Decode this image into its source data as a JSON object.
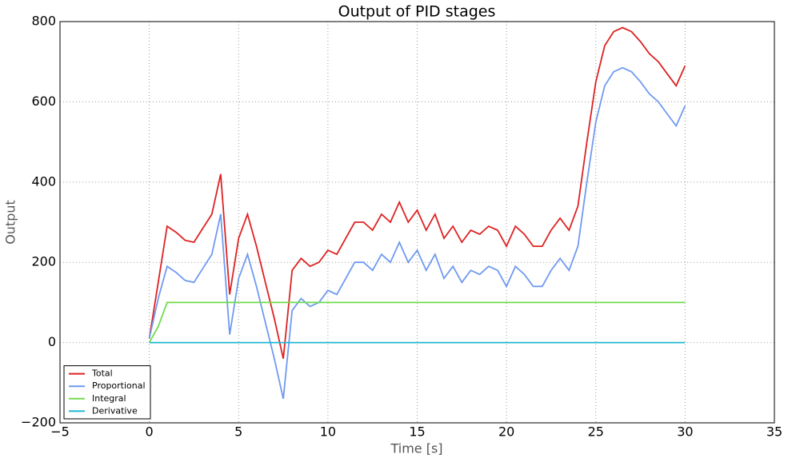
{
  "chart_data": {
    "type": "line",
    "title": "Output of PID stages",
    "xlabel": "Time [s]",
    "ylabel": "Output",
    "x": [
      0,
      0.5,
      1,
      1.5,
      2,
      2.5,
      3,
      3.5,
      4,
      4.5,
      5,
      5.5,
      6,
      6.5,
      7,
      7.5,
      8,
      8.5,
      9,
      9.5,
      10,
      10.5,
      11,
      11.5,
      12,
      12.5,
      13,
      13.5,
      14,
      14.5,
      15,
      15.5,
      16,
      16.5,
      17,
      17.5,
      18,
      18.5,
      19,
      19.5,
      20,
      20.5,
      21,
      21.5,
      22,
      22.5,
      23,
      23.5,
      24,
      24.5,
      25,
      25.5,
      26,
      26.5,
      27,
      27.5,
      28,
      28.5,
      29,
      29.5,
      30
    ],
    "series": [
      {
        "name": "Total",
        "color": "#dd2222",
        "values": [
          10,
          150,
          290,
          275,
          255,
          250,
          285,
          320,
          420,
          120,
          260,
          320,
          240,
          150,
          60,
          -40,
          180,
          210,
          190,
          200,
          230,
          220,
          260,
          300,
          300,
          280,
          320,
          300,
          350,
          300,
          330,
          280,
          320,
          260,
          290,
          250,
          280,
          270,
          290,
          280,
          240,
          290,
          270,
          240,
          240,
          280,
          310,
          280,
          340,
          500,
          650,
          740,
          775,
          785,
          775,
          750,
          720,
          700,
          670,
          640,
          690
        ]
      },
      {
        "name": "Proportional",
        "color": "#6f9af0",
        "values": [
          10,
          110,
          190,
          175,
          155,
          150,
          185,
          220,
          320,
          20,
          160,
          220,
          140,
          50,
          -40,
          -140,
          80,
          110,
          90,
          100,
          130,
          120,
          160,
          200,
          200,
          180,
          220,
          200,
          250,
          200,
          230,
          180,
          220,
          160,
          190,
          150,
          180,
          170,
          190,
          180,
          140,
          190,
          170,
          140,
          140,
          180,
          210,
          180,
          240,
          400,
          550,
          640,
          675,
          685,
          675,
          650,
          620,
          600,
          570,
          540,
          590
        ]
      },
      {
        "name": "Integral",
        "color": "#6fdc4a",
        "values": [
          0,
          40,
          100,
          100,
          100,
          100,
          100,
          100,
          100,
          100,
          100,
          100,
          100,
          100,
          100,
          100,
          100,
          100,
          100,
          100,
          100,
          100,
          100,
          100,
          100,
          100,
          100,
          100,
          100,
          100,
          100,
          100,
          100,
          100,
          100,
          100,
          100,
          100,
          100,
          100,
          100,
          100,
          100,
          100,
          100,
          100,
          100,
          100,
          100,
          100,
          100,
          100,
          100,
          100,
          100,
          100,
          100,
          100,
          100,
          100,
          100
        ]
      },
      {
        "name": "Derivative",
        "color": "#1fb8d0",
        "values": [
          0,
          0,
          0,
          0,
          0,
          0,
          0,
          0,
          0,
          0,
          0,
          0,
          0,
          0,
          0,
          0,
          0,
          0,
          0,
          0,
          0,
          0,
          0,
          0,
          0,
          0,
          0,
          0,
          0,
          0,
          0,
          0,
          0,
          0,
          0,
          0,
          0,
          0,
          0,
          0,
          0,
          0,
          0,
          0,
          0,
          0,
          0,
          0,
          0,
          0,
          0,
          0,
          0,
          0,
          0,
          0,
          0,
          0,
          0,
          0,
          0
        ]
      }
    ],
    "xlim": [
      -5,
      35
    ],
    "xticks": [
      {
        "value": -5,
        "label": "−5"
      },
      0,
      5,
      10,
      15,
      20,
      25,
      30,
      35
    ],
    "ylim": [
      -200,
      800
    ],
    "yticks": [
      {
        "value": -200,
        "label": "−200"
      },
      0,
      200,
      400,
      600,
      800
    ],
    "grid": true,
    "legend": "lower left"
  }
}
